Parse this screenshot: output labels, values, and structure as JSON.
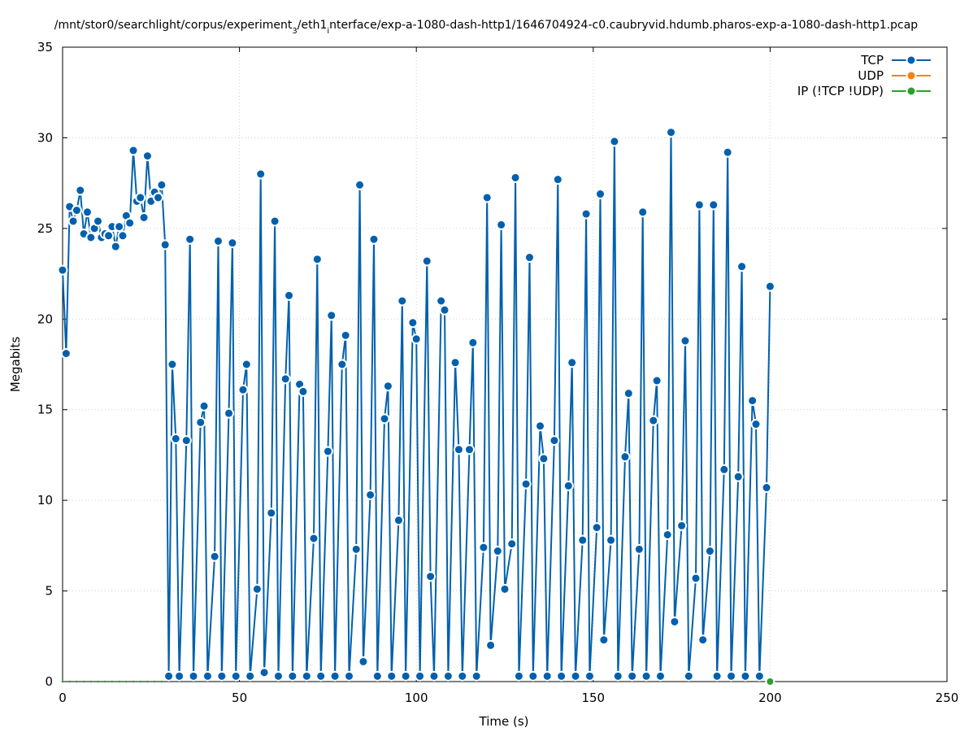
{
  "chart_data": {
    "type": "line",
    "title": "/mnt/stor0/searchlight/corpus/experiment",
    "title_sub": "3",
    "title_rest": "/eth1",
    "title_sub2": "i",
    "title_end": "nterface/exp-a-1080-dash-http1/1646704924-c0.caubryvid.hdumb.pharos-exp-a-1080-dash-http1.pcap",
    "xlabel": "Time (s)",
    "ylabel": "Megabits",
    "xlim": [
      0,
      250
    ],
    "ylim": [
      0,
      35
    ],
    "xticks": [
      0,
      50,
      100,
      150,
      200,
      250
    ],
    "yticks": [
      0,
      5,
      10,
      15,
      20,
      25,
      30,
      35
    ],
    "grid": true,
    "legend_position": "top-right",
    "colors": {
      "tcp": "#0060ad",
      "udp": "#ff7f0e",
      "ip": "#2ca02c"
    },
    "series": [
      {
        "name": "TCP",
        "points": [
          [
            0,
            22.7
          ],
          [
            1,
            18.1
          ],
          [
            2,
            26.2
          ],
          [
            3,
            25.4
          ],
          [
            4,
            26.0
          ],
          [
            5,
            27.1
          ],
          [
            6,
            24.7
          ],
          [
            7,
            25.9
          ],
          [
            8,
            24.5
          ],
          [
            9,
            25.0
          ],
          [
            10,
            25.4
          ],
          [
            11,
            24.5
          ],
          [
            12,
            24.7
          ],
          [
            13,
            24.6
          ],
          [
            14,
            25.1
          ],
          [
            15,
            24.0
          ],
          [
            16,
            25.1
          ],
          [
            17,
            24.6
          ],
          [
            18,
            25.7
          ],
          [
            19,
            25.3
          ],
          [
            20,
            29.3
          ],
          [
            21,
            26.5
          ],
          [
            22,
            26.7
          ],
          [
            23,
            25.6
          ],
          [
            24,
            29.0
          ],
          [
            25,
            26.5
          ],
          [
            26,
            27.0
          ],
          [
            27,
            26.7
          ],
          [
            28,
            27.4
          ],
          [
            29,
            24.1
          ],
          [
            30,
            0.3
          ],
          [
            31,
            17.5
          ],
          [
            32,
            13.4
          ],
          [
            33,
            0.3
          ],
          [
            35,
            13.3
          ],
          [
            36,
            24.4
          ],
          [
            37,
            0.3
          ],
          [
            39,
            14.3
          ],
          [
            40,
            15.2
          ],
          [
            41,
            0.3
          ],
          [
            43,
            6.9
          ],
          [
            44,
            24.3
          ],
          [
            45,
            0.3
          ],
          [
            47,
            14.8
          ],
          [
            48,
            24.2
          ],
          [
            49,
            0.3
          ],
          [
            51,
            16.1
          ],
          [
            52,
            17.5
          ],
          [
            53,
            0.3
          ],
          [
            55,
            5.1
          ],
          [
            56,
            28.0
          ],
          [
            57,
            0.5
          ],
          [
            59,
            9.3
          ],
          [
            60,
            25.4
          ],
          [
            61,
            0.3
          ],
          [
            63,
            16.7
          ],
          [
            64,
            21.3
          ],
          [
            65,
            0.3
          ],
          [
            67,
            16.4
          ],
          [
            68,
            16.0
          ],
          [
            69,
            0.3
          ],
          [
            71,
            7.9
          ],
          [
            72,
            23.3
          ],
          [
            73,
            0.3
          ],
          [
            75,
            12.7
          ],
          [
            76,
            20.2
          ],
          [
            77,
            0.3
          ],
          [
            79,
            17.5
          ],
          [
            80,
            19.1
          ],
          [
            81,
            0.3
          ],
          [
            83,
            7.3
          ],
          [
            84,
            27.4
          ],
          [
            85,
            1.1
          ],
          [
            87,
            10.3
          ],
          [
            88,
            24.4
          ],
          [
            89,
            0.3
          ],
          [
            91,
            14.5
          ],
          [
            92,
            16.3
          ],
          [
            93,
            0.3
          ],
          [
            95,
            8.9
          ],
          [
            96,
            21.0
          ],
          [
            97,
            0.3
          ],
          [
            99,
            19.8
          ],
          [
            100,
            18.9
          ],
          [
            101,
            0.3
          ],
          [
            103,
            23.2
          ],
          [
            104,
            5.8
          ],
          [
            105,
            0.3
          ],
          [
            107,
            21.0
          ],
          [
            108,
            20.5
          ],
          [
            109,
            0.3
          ],
          [
            111,
            17.6
          ],
          [
            112,
            12.8
          ],
          [
            113,
            0.3
          ],
          [
            115,
            12.8
          ],
          [
            116,
            18.7
          ],
          [
            117,
            0.3
          ],
          [
            119,
            7.4
          ],
          [
            120,
            26.7
          ],
          [
            121,
            2.0
          ],
          [
            123,
            7.2
          ],
          [
            124,
            25.2
          ],
          [
            125,
            5.1
          ],
          [
            127,
            7.6
          ],
          [
            128,
            27.8
          ],
          [
            129,
            0.3
          ],
          [
            131,
            10.9
          ],
          [
            132,
            23.4
          ],
          [
            133,
            0.3
          ],
          [
            135,
            14.1
          ],
          [
            136,
            12.3
          ],
          [
            137,
            0.3
          ],
          [
            139,
            13.3
          ],
          [
            140,
            27.7
          ],
          [
            141,
            0.3
          ],
          [
            143,
            10.8
          ],
          [
            144,
            17.6
          ],
          [
            145,
            0.3
          ],
          [
            147,
            7.8
          ],
          [
            148,
            25.8
          ],
          [
            149,
            0.3
          ],
          [
            151,
            8.5
          ],
          [
            152,
            26.9
          ],
          [
            153,
            2.3
          ],
          [
            155,
            7.8
          ],
          [
            156,
            29.8
          ],
          [
            157,
            0.3
          ],
          [
            159,
            12.4
          ],
          [
            160,
            15.9
          ],
          [
            161,
            0.3
          ],
          [
            163,
            7.3
          ],
          [
            164,
            25.9
          ],
          [
            165,
            0.3
          ],
          [
            167,
            14.4
          ],
          [
            168,
            16.6
          ],
          [
            169,
            0.3
          ],
          [
            171,
            8.1
          ],
          [
            172,
            30.3
          ],
          [
            173,
            3.3
          ],
          [
            175,
            8.6
          ],
          [
            176,
            18.8
          ],
          [
            177,
            0.3
          ],
          [
            179,
            5.7
          ],
          [
            180,
            26.3
          ],
          [
            181,
            2.3
          ],
          [
            183,
            7.2
          ],
          [
            184,
            26.3
          ],
          [
            185,
            0.3
          ],
          [
            187,
            11.7
          ],
          [
            188,
            29.2
          ],
          [
            189,
            0.3
          ],
          [
            191,
            11.3
          ],
          [
            192,
            22.9
          ],
          [
            193,
            0.3
          ],
          [
            195,
            15.5
          ],
          [
            196,
            14.2
          ],
          [
            197,
            0.3
          ],
          [
            199,
            10.7
          ],
          [
            200,
            21.8
          ]
        ]
      },
      {
        "name": "UDP",
        "points": []
      },
      {
        "name": "IP (!TCP  !UDP)",
        "points": [
          [
            0,
            0
          ],
          [
            2,
            0
          ],
          [
            4,
            0
          ],
          [
            6,
            0
          ],
          [
            8,
            0
          ],
          [
            10,
            0
          ],
          [
            12,
            0
          ],
          [
            14,
            0
          ],
          [
            16,
            0
          ],
          [
            18,
            0
          ],
          [
            20,
            0
          ],
          [
            22,
            0
          ],
          [
            24,
            0
          ],
          [
            26,
            0
          ],
          [
            28,
            0
          ],
          [
            200,
            0
          ]
        ]
      }
    ]
  }
}
